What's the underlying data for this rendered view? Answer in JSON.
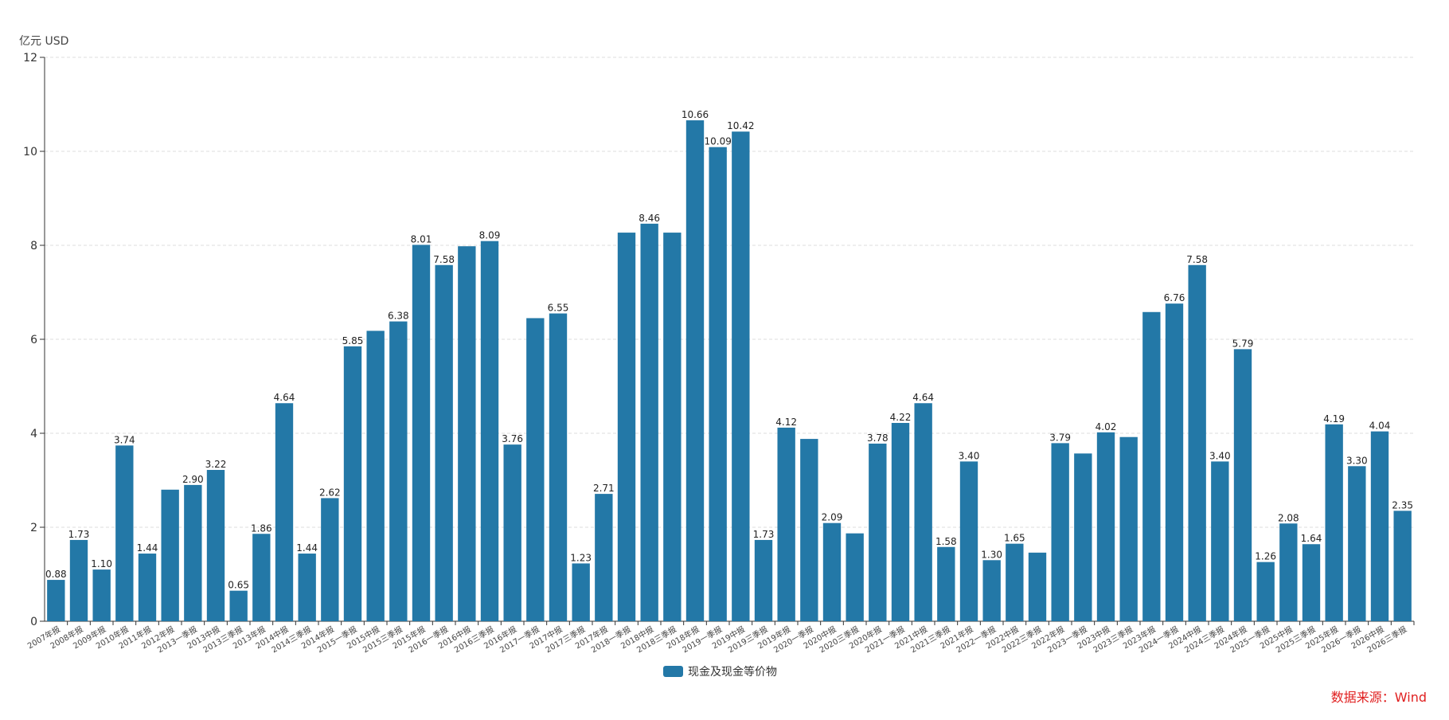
{
  "unit_label": "亿元  USD",
  "source_label": "数据来源：Wind",
  "colors": {
    "bar": "#2378a7",
    "grid": "#dddddd",
    "axis": "#333333",
    "source": "#e02020"
  },
  "chart_data": {
    "type": "bar",
    "ylim": [
      0,
      12
    ],
    "yticks": [
      0,
      2,
      4,
      6,
      8,
      10,
      12
    ],
    "grid": true,
    "legend_position": "bottom-center",
    "series": [
      {
        "name": "现金及现金等价物",
        "color": "#2378a7",
        "values": [
          0.88,
          1.73,
          1.1,
          3.74,
          1.44,
          2.8,
          2.9,
          3.22,
          0.65,
          1.86,
          4.64,
          1.44,
          2.62,
          5.85,
          6.18,
          6.38,
          8.01,
          7.58,
          7.98,
          8.09,
          3.76,
          6.45,
          6.55,
          1.23,
          2.71,
          8.27,
          8.46,
          8.27,
          10.66,
          10.09,
          10.42,
          1.73,
          4.12,
          3.88,
          2.09,
          1.87,
          3.78,
          4.22,
          4.64,
          1.58,
          3.4,
          1.3,
          1.65,
          1.46,
          3.79,
          3.57,
          4.02,
          3.92,
          6.58,
          6.76,
          7.58,
          3.4,
          5.79,
          1.26,
          2.08,
          1.64,
          4.19,
          3.3,
          4.04,
          2.35
        ],
        "labels": [
          "0.88",
          "1.73",
          "1.10",
          "3.74",
          "1.44",
          "",
          "2.90",
          "3.22",
          "0.65",
          "1.86",
          "4.64",
          "1.44",
          "2.62",
          "5.85",
          "",
          "6.38",
          "8.01",
          "7.58",
          "",
          "8.09",
          "3.76",
          "",
          "6.55",
          "1.23",
          "2.71",
          "",
          "8.46",
          "",
          "10.66",
          "10.09",
          "10.42",
          "1.73",
          "4.12",
          "",
          "2.09",
          "",
          "3.78",
          "4.22",
          "4.64",
          "1.58",
          "3.40",
          "1.30",
          "1.65",
          "",
          "3.79",
          "",
          "4.02",
          "",
          "",
          "6.76",
          "7.58",
          "3.40",
          "5.79",
          "1.26",
          "2.08",
          "1.64",
          "4.19",
          "3.30",
          "4.04",
          "2.35"
        ]
      }
    ],
    "categories": [
      "2007年报",
      "2008年报",
      "2009年报",
      "2010年报",
      "2011年报",
      "2012年报",
      "2013一季报",
      "2013中报",
      "2013三季报",
      "2013年报",
      "2014中报",
      "2014三季报",
      "2014年报",
      "2015一季报",
      "2015中报",
      "2015三季报",
      "2015年报",
      "2016一季报",
      "2016中报",
      "2016三季报",
      "2016年报",
      "2017一季报",
      "2017中报",
      "2017三季报",
      "2017年报",
      "2018一季报",
      "2018中报",
      "2018三季报",
      "2018年报",
      "2019一季报",
      "2019中报",
      "2019三季报",
      "2019年报",
      "2020一季报",
      "2020中报",
      "2020三季报",
      "2020年报",
      "2021一季报",
      "2021中报",
      "2021三季报",
      "2021年报",
      "2022一季报",
      "2022中报",
      "2022三季报",
      "2022年报",
      "2023一季报",
      "2023中报",
      "2023三季报",
      "2023年报",
      "2024一季报",
      "2024中报",
      "2024三季报",
      "2024年报",
      "2025一季报",
      "2025中报",
      "2025三季报",
      "2025年报",
      "2026一季报",
      "2026中报",
      "2026三季报"
    ]
  }
}
